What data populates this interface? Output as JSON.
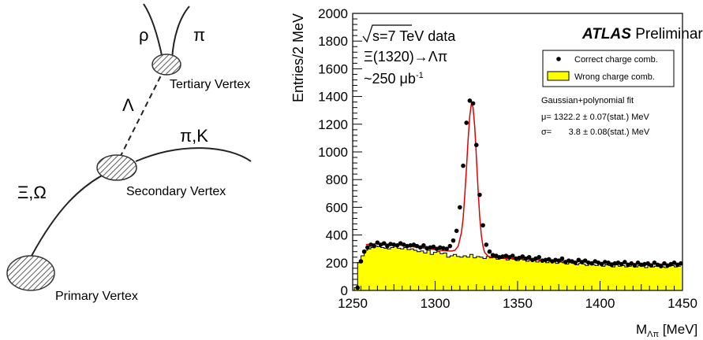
{
  "diagram": {
    "labels": {
      "rho": "ρ",
      "pi_top": "π",
      "tertiary": "Tertiary Vertex",
      "lambda": "Λ",
      "pi_k": "π,K",
      "xi_omega": "Ξ,Ω",
      "secondary": "Secondary Vertex",
      "primary": "Primary Vertex"
    }
  },
  "chart_data": {
    "type": "histogram",
    "xlabel_main": "M",
    "xlabel_sub": "Λπ",
    "xlabel_unit": " [MeV]",
    "ylabel": "Entries/2 MeV",
    "xlim": [
      1250,
      1450
    ],
    "ylim": [
      0,
      2000
    ],
    "x_ticks": [
      "1250",
      "1300",
      "1350",
      "1400",
      "1450"
    ],
    "y_ticks": [
      "0",
      "200",
      "400",
      "600",
      "800",
      "1000",
      "1200",
      "1400",
      "1600",
      "1800",
      "2000"
    ],
    "x_tick_values": [
      1250,
      1300,
      1350,
      1400,
      1450
    ],
    "y_tick_values": [
      0,
      200,
      400,
      600,
      800,
      1000,
      1200,
      1400,
      1600,
      1800,
      2000
    ],
    "bin_width": 2,
    "annotations": {
      "sqrt_s": "s=7 TeV data",
      "decay": "Ξ(1320)→Λπ",
      "lumi_main": "~250 μb",
      "lumi_sup": "-1",
      "experiment": "ATLAS",
      "status": "Preliminary",
      "fit_title": "Gaussian+polynomial fit",
      "fit_mu": "μ= 1322.2 ± 0.07(stat.) MeV",
      "fit_sigma": "σ=       3.8 ± 0.08(stat.) MeV"
    },
    "legend": {
      "placement": "top-right",
      "entries": [
        {
          "label": "Correct charge comb.",
          "style": "marker"
        },
        {
          "label": "Wrong charge comb.",
          "style": "filled"
        }
      ]
    },
    "colors": {
      "fill": "#ffff00",
      "fit": "#e00000",
      "marker": "#000000"
    },
    "series": [
      {
        "name": "Correct charge comb.",
        "type": "scatter",
        "x": [
          1253,
          1255,
          1257,
          1259,
          1261,
          1263,
          1265,
          1267,
          1269,
          1271,
          1273,
          1275,
          1277,
          1279,
          1281,
          1283,
          1285,
          1287,
          1289,
          1291,
          1293,
          1295,
          1297,
          1299,
          1301,
          1303,
          1305,
          1307,
          1309,
          1311,
          1313,
          1315,
          1317,
          1319,
          1321,
          1323,
          1325,
          1327,
          1329,
          1331,
          1333,
          1335,
          1337,
          1339,
          1341,
          1343,
          1345,
          1347,
          1349,
          1351,
          1353,
          1355,
          1357,
          1359,
          1361,
          1363,
          1365,
          1367,
          1369,
          1371,
          1373,
          1375,
          1377,
          1379,
          1381,
          1383,
          1385,
          1387,
          1389,
          1391,
          1393,
          1395,
          1397,
          1399,
          1401,
          1403,
          1405,
          1407,
          1409,
          1411,
          1413,
          1415,
          1417,
          1419,
          1421,
          1423,
          1425,
          1427,
          1429,
          1431,
          1433,
          1435,
          1437,
          1439,
          1441,
          1443,
          1445,
          1447,
          1449
        ],
        "y": [
          20,
          210,
          280,
          310,
          330,
          320,
          345,
          330,
          340,
          320,
          335,
          330,
          325,
          340,
          330,
          320,
          325,
          330,
          320,
          310,
          325,
          305,
          310,
          315,
          300,
          310,
          305,
          300,
          320,
          360,
          430,
          600,
          900,
          1210,
          1370,
          1350,
          1050,
          690,
          470,
          330,
          280,
          255,
          250,
          240,
          245,
          250,
          240,
          250,
          230,
          235,
          245,
          230,
          240,
          220,
          230,
          240,
          215,
          220,
          225,
          210,
          220,
          215,
          230,
          205,
          215,
          210,
          200,
          220,
          205,
          215,
          200,
          195,
          210,
          200,
          190,
          205,
          200,
          185,
          195,
          200,
          190,
          205,
          185,
          195,
          180,
          200,
          185,
          190,
          195,
          180,
          200,
          185,
          175,
          195,
          180,
          190,
          200,
          185,
          195
        ]
      },
      {
        "name": "Wrong charge comb.",
        "type": "histogram",
        "x": [
          1252,
          1254,
          1256,
          1258,
          1260,
          1262,
          1264,
          1266,
          1268,
          1270,
          1272,
          1274,
          1276,
          1278,
          1280,
          1282,
          1284,
          1286,
          1288,
          1290,
          1292,
          1294,
          1296,
          1298,
          1300,
          1302,
          1304,
          1306,
          1308,
          1310,
          1312,
          1314,
          1316,
          1318,
          1320,
          1322,
          1324,
          1326,
          1328,
          1330,
          1332,
          1334,
          1336,
          1338,
          1340,
          1342,
          1344,
          1346,
          1348,
          1350,
          1352,
          1354,
          1356,
          1358,
          1360,
          1362,
          1364,
          1366,
          1368,
          1370,
          1372,
          1374,
          1376,
          1378,
          1380,
          1382,
          1384,
          1386,
          1388,
          1390,
          1392,
          1394,
          1396,
          1398,
          1400,
          1402,
          1404,
          1406,
          1408,
          1410,
          1412,
          1414,
          1416,
          1418,
          1420,
          1422,
          1424,
          1426,
          1428,
          1430,
          1432,
          1434,
          1436,
          1438,
          1440,
          1442,
          1444,
          1446,
          1448
        ],
        "y": [
          20,
          200,
          250,
          290,
          300,
          310,
          320,
          315,
          310,
          305,
          300,
          310,
          320,
          305,
          300,
          310,
          295,
          300,
          290,
          280,
          285,
          270,
          290,
          260,
          275,
          280,
          265,
          270,
          240,
          250,
          260,
          245,
          240,
          250,
          240,
          260,
          235,
          245,
          240,
          230,
          245,
          235,
          240,
          225,
          230,
          240,
          220,
          230,
          225,
          215,
          225,
          220,
          210,
          220,
          215,
          205,
          215,
          210,
          200,
          210,
          205,
          195,
          205,
          200,
          190,
          200,
          195,
          185,
          195,
          190,
          180,
          190,
          185,
          180,
          190,
          175,
          185,
          180,
          170,
          185,
          175,
          180,
          170,
          175,
          185,
          170,
          180,
          175,
          165,
          180,
          170,
          175,
          180,
          170,
          165,
          175,
          180,
          170,
          175
        ]
      },
      {
        "name": "Gaussian+polynomial fit",
        "type": "line",
        "x": [
          1258,
          1262,
          1266,
          1270,
          1274,
          1278,
          1282,
          1286,
          1290,
          1294,
          1298,
          1302,
          1306,
          1310,
          1312,
          1314,
          1316,
          1317,
          1318,
          1319,
          1320,
          1321,
          1322,
          1323,
          1324,
          1325,
          1326,
          1327,
          1328,
          1329,
          1330,
          1332,
          1334,
          1338,
          1342,
          1350,
          1360,
          1370,
          1380,
          1390,
          1400,
          1410,
          1420,
          1430,
          1440,
          1450
        ],
        "y": [
          330,
          336,
          338,
          336,
          332,
          328,
          322,
          316,
          310,
          304,
          298,
          292,
          286,
          284,
          290,
          320,
          420,
          520,
          690,
          880,
          1090,
          1260,
          1350,
          1320,
          1180,
          960,
          740,
          540,
          400,
          320,
          275,
          248,
          240,
          235,
          232,
          228,
          222,
          216,
          211,
          206,
          202,
          198,
          195,
          192,
          190,
          188
        ]
      }
    ]
  }
}
